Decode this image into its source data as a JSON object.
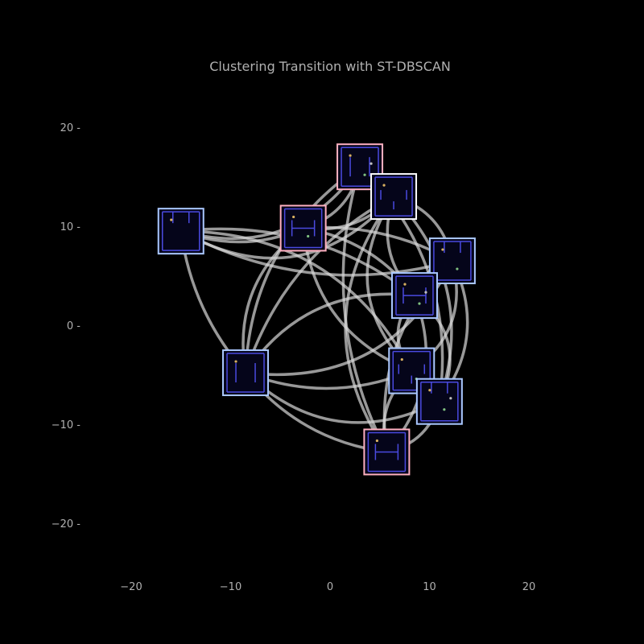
{
  "chart_data": {
    "type": "scatter",
    "title": "Clustering Transition with ST-DBSCAN",
    "xlabel": "",
    "ylabel": "",
    "xlim": [
      -25,
      30
    ],
    "ylim": [
      -25,
      25
    ],
    "x_ticks": [
      -20,
      -10,
      0,
      10,
      20
    ],
    "y_ticks": [
      20,
      10,
      0,
      -10,
      -20
    ],
    "x_tick_labels": [
      "−20",
      "−10",
      "0",
      "10",
      "20"
    ],
    "y_tick_labels": [
      "20 -",
      "10 -",
      "0 -",
      "−10 -",
      "−20 -"
    ],
    "grid": false,
    "colors": {
      "background": "#000000",
      "text": "#b0b0b0",
      "edge": "#d8d8d8",
      "node_fill": "#05051a",
      "border_blue": "#aac8ff",
      "border_pink": "#ffb0c0",
      "border_white": "#ffffff",
      "wall": "#4a4ae0"
    },
    "nodes": [
      {
        "id": "A",
        "x": -15,
        "y": 9.5,
        "border": "blue"
      },
      {
        "id": "B",
        "x": -2.7,
        "y": 9.8,
        "border": "pink"
      },
      {
        "id": "C",
        "x": 3,
        "y": 16,
        "border": "pink"
      },
      {
        "id": "D",
        "x": 6.4,
        "y": 13,
        "border": "white"
      },
      {
        "id": "E",
        "x": 12.3,
        "y": 6.5,
        "border": "blue"
      },
      {
        "id": "F",
        "x": 8.5,
        "y": 3,
        "border": "blue"
      },
      {
        "id": "G",
        "x": -8.5,
        "y": -4.8,
        "border": "blue"
      },
      {
        "id": "H",
        "x": 8.2,
        "y": -4.6,
        "border": "blue"
      },
      {
        "id": "I",
        "x": 11,
        "y": -7.7,
        "border": "blue"
      },
      {
        "id": "J",
        "x": 5.7,
        "y": -12.8,
        "border": "pink"
      }
    ],
    "edges": [
      [
        "A",
        "C",
        0.35
      ],
      [
        "A",
        "D",
        0.4
      ],
      [
        "A",
        "E",
        0.2
      ],
      [
        "A",
        "F",
        -0.2
      ],
      [
        "A",
        "G",
        0.15
      ],
      [
        "A",
        "H",
        -0.3
      ],
      [
        "A",
        "B",
        0.2
      ],
      [
        "B",
        "C",
        0.3
      ],
      [
        "B",
        "D",
        0.25
      ],
      [
        "B",
        "F",
        -0.2
      ],
      [
        "B",
        "H",
        0.3
      ],
      [
        "B",
        "G",
        0.3
      ],
      [
        "B",
        "E",
        -0.15
      ],
      [
        "C",
        "D",
        0.3
      ],
      [
        "C",
        "J",
        0.2
      ],
      [
        "C",
        "G",
        0.25
      ],
      [
        "C",
        "I",
        -0.25
      ],
      [
        "D",
        "E",
        -0.3
      ],
      [
        "D",
        "F",
        0.3
      ],
      [
        "D",
        "H",
        0.4
      ],
      [
        "D",
        "I",
        -0.3
      ],
      [
        "D",
        "J",
        0.35
      ],
      [
        "D",
        "G",
        0.2
      ],
      [
        "E",
        "F",
        0.3
      ],
      [
        "E",
        "H",
        -0.35
      ],
      [
        "E",
        "I",
        -0.3
      ],
      [
        "E",
        "J",
        0.25
      ],
      [
        "F",
        "G",
        0.3
      ],
      [
        "F",
        "H",
        0.4
      ],
      [
        "F",
        "I",
        -0.4
      ],
      [
        "F",
        "J",
        -0.3
      ],
      [
        "G",
        "H",
        0.2
      ],
      [
        "G",
        "I",
        0.35
      ],
      [
        "G",
        "J",
        0.2
      ],
      [
        "G",
        "E",
        0.35
      ],
      [
        "H",
        "I",
        0.4
      ],
      [
        "H",
        "J",
        0.3
      ],
      [
        "I",
        "J",
        -0.3
      ]
    ]
  }
}
